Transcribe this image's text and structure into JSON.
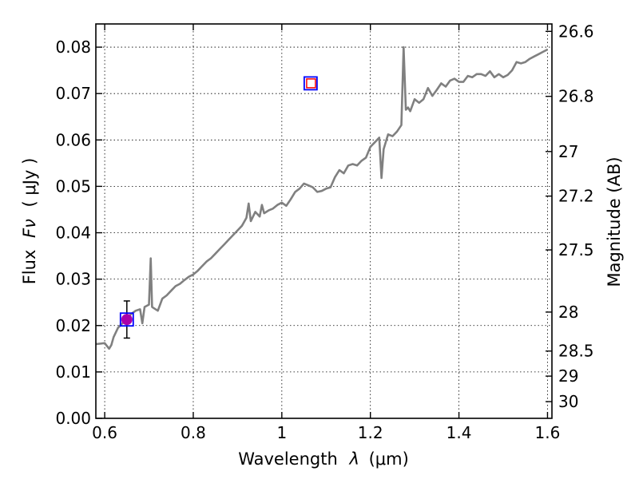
{
  "chart_data": {
    "type": "line",
    "xlabel_prefix": "Wavelength",
    "xlabel_symbol": "λ",
    "xlabel_units": "(μm)",
    "ylabel_prefix": "Flux",
    "ylabel_symbol": "Fν",
    "ylabel_units": "( μJy )",
    "y2label": "Magnitude (AB)",
    "xlim": [
      0.58,
      1.61
    ],
    "ylim": [
      0.0,
      0.085
    ],
    "grid": true,
    "x_ticks": [
      0.6,
      0.8,
      1.0,
      1.2,
      1.4,
      1.6
    ],
    "x_tick_labels": [
      "0.6",
      "0.8",
      "1",
      "1.2",
      "1.4",
      "1.6"
    ],
    "y_ticks": [
      0.0,
      0.01,
      0.02,
      0.03,
      0.04,
      0.05,
      0.06,
      0.07,
      0.08
    ],
    "y_tick_labels": [
      "0.00",
      "0.01",
      "0.02",
      "0.03",
      "0.04",
      "0.05",
      "0.06",
      "0.07",
      "0.08"
    ],
    "y2_ticks": [
      {
        "label": "26.6",
        "flux": 0.0834
      },
      {
        "label": "26.8",
        "flux": 0.0694
      },
      {
        "label": "27",
        "flux": 0.0575
      },
      {
        "label": "27.2",
        "flux": 0.0479
      },
      {
        "label": "27.5",
        "flux": 0.0363
      },
      {
        "label": "28",
        "flux": 0.0229
      },
      {
        "label": "28.5",
        "flux": 0.0145
      },
      {
        "label": "29",
        "flux": 0.0091
      },
      {
        "label": "30",
        "flux": 0.0036
      }
    ],
    "series": [
      {
        "kind": "line",
        "color": "#808080",
        "x": [
          0.58,
          0.6,
          0.61,
          0.615,
          0.62,
          0.63,
          0.64,
          0.65,
          0.66,
          0.67,
          0.68,
          0.685,
          0.69,
          0.7,
          0.704,
          0.707,
          0.71,
          0.72,
          0.73,
          0.74,
          0.75,
          0.76,
          0.77,
          0.78,
          0.79,
          0.8,
          0.81,
          0.82,
          0.83,
          0.84,
          0.85,
          0.86,
          0.87,
          0.88,
          0.89,
          0.9,
          0.91,
          0.92,
          0.925,
          0.93,
          0.94,
          0.95,
          0.955,
          0.96,
          0.97,
          0.98,
          0.99,
          1.0,
          1.01,
          1.02,
          1.03,
          1.04,
          1.05,
          1.06,
          1.07,
          1.08,
          1.09,
          1.1,
          1.11,
          1.12,
          1.13,
          1.14,
          1.15,
          1.16,
          1.17,
          1.18,
          1.19,
          1.2,
          1.21,
          1.22,
          1.225,
          1.23,
          1.24,
          1.25,
          1.26,
          1.27,
          1.275,
          1.28,
          1.285,
          1.29,
          1.3,
          1.31,
          1.32,
          1.33,
          1.34,
          1.35,
          1.36,
          1.37,
          1.38,
          1.39,
          1.4,
          1.41,
          1.42,
          1.43,
          1.44,
          1.45,
          1.46,
          1.47,
          1.48,
          1.49,
          1.5,
          1.51,
          1.52,
          1.53,
          1.54,
          1.55,
          1.56,
          1.57,
          1.58,
          1.59,
          1.6
        ],
        "y": [
          0.016,
          0.0162,
          0.015,
          0.0158,
          0.0175,
          0.0195,
          0.0205,
          0.0215,
          0.0225,
          0.0232,
          0.0235,
          0.0205,
          0.024,
          0.0245,
          0.0345,
          0.024,
          0.0238,
          0.0232,
          0.0258,
          0.0265,
          0.0275,
          0.0285,
          0.029,
          0.0298,
          0.0305,
          0.031,
          0.0318,
          0.0328,
          0.0338,
          0.0345,
          0.0355,
          0.0365,
          0.0375,
          0.0385,
          0.0395,
          0.0405,
          0.0415,
          0.0432,
          0.0463,
          0.0425,
          0.0445,
          0.0435,
          0.046,
          0.0442,
          0.0448,
          0.0452,
          0.046,
          0.0465,
          0.0458,
          0.0472,
          0.0488,
          0.0495,
          0.0506,
          0.0502,
          0.0498,
          0.0488,
          0.049,
          0.0495,
          0.0498,
          0.052,
          0.0535,
          0.0528,
          0.0545,
          0.0548,
          0.0545,
          0.0555,
          0.0562,
          0.0585,
          0.0595,
          0.0605,
          0.0518,
          0.058,
          0.0612,
          0.0608,
          0.0618,
          0.0632,
          0.08,
          0.0665,
          0.067,
          0.0662,
          0.0688,
          0.068,
          0.0688,
          0.0712,
          0.0695,
          0.0708,
          0.0722,
          0.0715,
          0.0728,
          0.0732,
          0.0725,
          0.0725,
          0.0738,
          0.0735,
          0.0742,
          0.0742,
          0.0738,
          0.0748,
          0.0735,
          0.0742,
          0.0735,
          0.074,
          0.075,
          0.0768,
          0.0765,
          0.0768,
          0.0775,
          0.078,
          0.0785,
          0.079,
          0.0795
        ]
      },
      {
        "kind": "errorbar",
        "color": "#000000",
        "x": [
          0.65
        ],
        "y": [
          0.0213
        ],
        "yerr": [
          0.004
        ]
      },
      {
        "kind": "marker-circle",
        "color": "#aa00aa",
        "x": [
          0.65
        ],
        "y": [
          0.0213
        ]
      },
      {
        "kind": "marker-square",
        "color": "#0000ff",
        "x": [
          0.65,
          1.065
        ],
        "y": [
          0.0213,
          0.0722
        ]
      },
      {
        "kind": "marker-square-small",
        "color": "#ff0000",
        "x": [
          1.066
        ],
        "y": [
          0.0722
        ]
      }
    ]
  }
}
